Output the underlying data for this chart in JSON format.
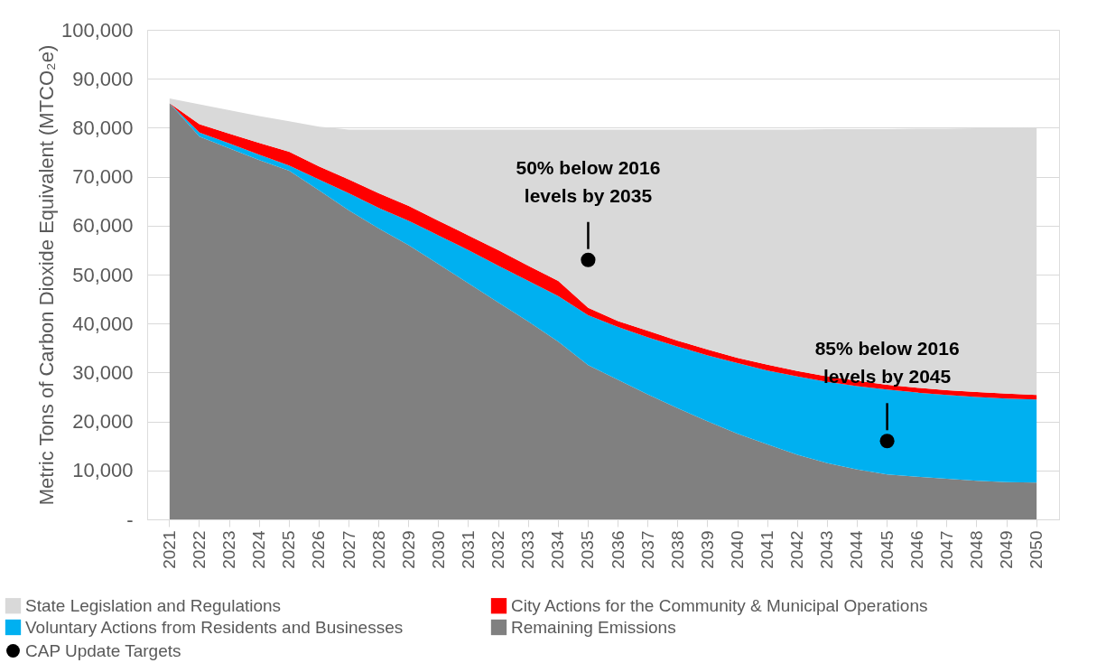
{
  "chart_data": {
    "type": "area",
    "stacked": true,
    "ylabel": "Metric Tons of Carbon Dioxide Equivalent (MTCO₂e)",
    "categories": [
      "2021",
      "2022",
      "2023",
      "2024",
      "2025",
      "2026",
      "2027",
      "2028",
      "2029",
      "2030",
      "2031",
      "2032",
      "2033",
      "2034",
      "2035",
      "2036",
      "2037",
      "2038",
      "2039",
      "2040",
      "2041",
      "2042",
      "2043",
      "2044",
      "2045",
      "2046",
      "2047",
      "2048",
      "2049",
      "2050"
    ],
    "series": [
      {
        "name": "Remaining Emissions",
        "color": "#808080",
        "values": [
          85000,
          78200,
          75800,
          73400,
          71200,
          67200,
          63100,
          59400,
          56000,
          52100,
          48200,
          44300,
          40400,
          36300,
          31500,
          28500,
          25500,
          22700,
          20000,
          17500,
          15300,
          13200,
          11500,
          10200,
          9200,
          8700,
          8300,
          7900,
          7600,
          7500
        ]
      },
      {
        "name": "Voluntary Actions from Residents and Businesses",
        "color": "#00b0f0",
        "values": [
          0,
          800,
          1000,
          1100,
          1100,
          2200,
          3500,
          4200,
          5000,
          5900,
          6800,
          7500,
          8300,
          9300,
          10200,
          10800,
          11700,
          12600,
          13500,
          14400,
          15100,
          16000,
          16600,
          17000,
          17300,
          17200,
          17100,
          17100,
          17100,
          17000
        ]
      },
      {
        "name": "City Actions for the Community & Municipal Operations",
        "color": "#ff0000",
        "values": [
          0,
          1700,
          2000,
          2400,
          2800,
          2700,
          2800,
          3000,
          3000,
          3000,
          3000,
          3200,
          3100,
          3100,
          1500,
          1200,
          1300,
          1200,
          1200,
          1100,
          1200,
          1100,
          1100,
          1100,
          1000,
          1000,
          1000,
          1000,
          1000,
          900
        ]
      },
      {
        "name": "State Legislation and Regulations",
        "color": "#d9d9d9",
        "values": [
          1000,
          4100,
          4800,
          5500,
          6200,
          8100,
          10200,
          13000,
          15600,
          18600,
          21600,
          24600,
          27800,
          30900,
          36400,
          39100,
          41100,
          43100,
          44900,
          46600,
          48000,
          49300,
          50500,
          51400,
          52200,
          52900,
          53400,
          53900,
          54200,
          54600
        ]
      },
      {
        "name": "CAP Update Targets",
        "type": "scatter",
        "color": "#000000",
        "marker": "circle",
        "values": [
          null,
          null,
          null,
          null,
          null,
          null,
          null,
          null,
          null,
          null,
          null,
          null,
          null,
          null,
          53000,
          null,
          null,
          null,
          null,
          null,
          null,
          null,
          null,
          null,
          16000,
          null,
          null,
          null,
          null,
          null
        ]
      }
    ],
    "ylim": [
      0,
      100000
    ],
    "yticks": [
      {
        "value": 0,
        "label": "-"
      },
      {
        "value": 10000,
        "label": "10,000"
      },
      {
        "value": 20000,
        "label": "20,000"
      },
      {
        "value": 30000,
        "label": "30,000"
      },
      {
        "value": 40000,
        "label": "40,000"
      },
      {
        "value": 50000,
        "label": "50,000"
      },
      {
        "value": 60000,
        "label": "60,000"
      },
      {
        "value": 70000,
        "label": "70,000"
      },
      {
        "value": 80000,
        "label": "80,000"
      },
      {
        "value": 90000,
        "label": "90,000"
      },
      {
        "value": 100000,
        "label": "100,000"
      }
    ],
    "grid": "y",
    "legend": "bottom",
    "annotations": [
      {
        "text": "50% below 2016\nlevels by 2035",
        "x": "2035",
        "y": 53000
      },
      {
        "text": "85% below 2016\nlevels by 2045",
        "x": "2045",
        "y": 16000
      }
    ]
  }
}
